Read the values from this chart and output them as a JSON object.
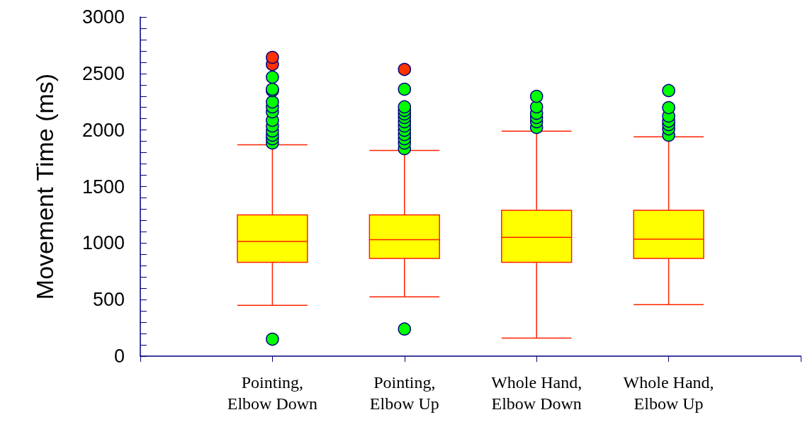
{
  "chart_data": {
    "type": "box",
    "ylabel": "Movement Time (ms)",
    "categories": [
      "Pointing,\nElbow Down",
      "Pointing,\nElbow Up",
      "Whole Hand,\nElbow Down",
      "Whole Hand,\nElbow Up"
    ],
    "ylim": [
      0,
      3000
    ],
    "yticks": [
      0,
      500,
      1000,
      1500,
      2000,
      2500,
      3000
    ],
    "grid": false,
    "series": [
      {
        "color": "#ffff00",
        "boxes": [
          {
            "low": 450,
            "q1": 830,
            "median": 1015,
            "q3": 1250,
            "high": 1870,
            "outliers": [
              150,
              1885,
              1923,
              1954,
              1992,
              2036,
              2086,
              2161,
              2205,
              2248,
              2349,
              2361,
              2468
            ]
          },
          {
            "low": 525,
            "q1": 865,
            "median": 1030,
            "q3": 1250,
            "high": 1820,
            "outliers": [
              240,
              1835,
              1885,
              1923,
              1960,
              1998,
              2036,
              2073,
              2111,
              2142,
              2173,
              2205,
              2361
            ]
          },
          {
            "low": 160,
            "q1": 830,
            "median": 1050,
            "q3": 1290,
            "high": 1990,
            "outliers": [
              2023,
              2073,
              2111,
              2148,
              2205,
              2298
            ]
          },
          {
            "low": 455,
            "q1": 865,
            "median": 1035,
            "q3": 1290,
            "high": 1940,
            "outliers": [
              1954,
              2010,
              2048,
              2079,
              2123,
              2198,
              2349
            ]
          }
        ]
      },
      {
        "type": "scatter",
        "color": "#ff3300",
        "x": [
          "Pointing,\nElbow Down",
          "Pointing,\nElbow Down",
          "Pointing,\nElbow Up"
        ],
        "values": [
          2580,
          2643,
          2536
        ]
      }
    ]
  }
}
